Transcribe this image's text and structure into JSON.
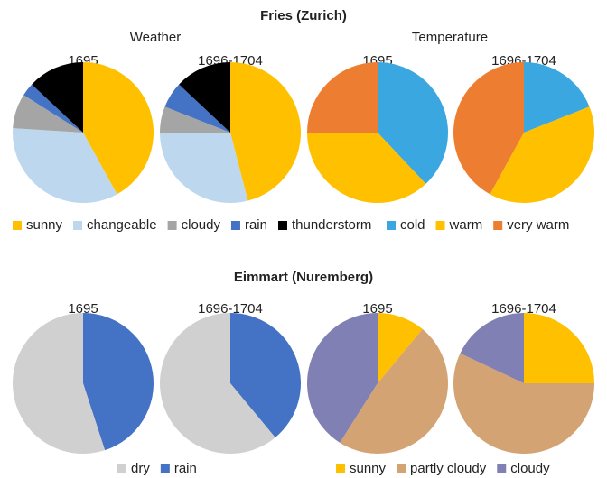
{
  "headings": {
    "top_title": "Fries (Zurich)",
    "weather": "Weather",
    "temperature": "Temperature",
    "bottom_title": "Eimmart (Nuremberg)"
  },
  "chart_data": [
    {
      "type": "pie",
      "title": "1695",
      "categories": [
        "sunny",
        "changeable",
        "cloudy",
        "rain",
        "thunderstorm"
      ],
      "values": [
        42,
        34,
        8,
        3,
        13
      ],
      "colors": [
        "#FFC000",
        "#BDD7EE",
        "#A5A5A5",
        "#4472C4",
        "#000000"
      ]
    },
    {
      "type": "pie",
      "title": "1696-1704",
      "categories": [
        "sunny",
        "changeable",
        "cloudy",
        "rain",
        "thunderstorm"
      ],
      "values": [
        46,
        29,
        6,
        6,
        13
      ],
      "colors": [
        "#FFC000",
        "#BDD7EE",
        "#A5A5A5",
        "#4472C4",
        "#000000"
      ]
    },
    {
      "type": "pie",
      "title": "1695",
      "categories": [
        "cold",
        "warm",
        "very warm"
      ],
      "values": [
        38,
        37,
        25
      ],
      "colors": [
        "#3BA7E0",
        "#FFC000",
        "#ED7D31"
      ]
    },
    {
      "type": "pie",
      "title": "1696-1704",
      "categories": [
        "cold",
        "warm",
        "very warm"
      ],
      "values": [
        19,
        39,
        42
      ],
      "colors": [
        "#3BA7E0",
        "#FFC000",
        "#ED7D31"
      ]
    },
    {
      "type": "pie",
      "title": "1695",
      "categories": [
        "rain",
        "dry"
      ],
      "values": [
        45,
        55
      ],
      "colors": [
        "#4472C4",
        "#D0D0D0"
      ]
    },
    {
      "type": "pie",
      "title": "1696-1704",
      "categories": [
        "rain",
        "dry"
      ],
      "values": [
        39,
        61
      ],
      "colors": [
        "#4472C4",
        "#D0D0D0"
      ]
    },
    {
      "type": "pie",
      "title": "1695",
      "categories": [
        "sunny",
        "partly cloudy",
        "cloudy"
      ],
      "values": [
        11,
        48,
        41
      ],
      "colors": [
        "#FFC000",
        "#D3A373",
        "#8080B4"
      ]
    },
    {
      "type": "pie",
      "title": "1696-1704",
      "categories": [
        "sunny",
        "partly cloudy",
        "cloudy"
      ],
      "values": [
        25,
        57,
        18
      ],
      "colors": [
        "#FFC000",
        "#D3A373",
        "#8080B4"
      ]
    }
  ]
}
